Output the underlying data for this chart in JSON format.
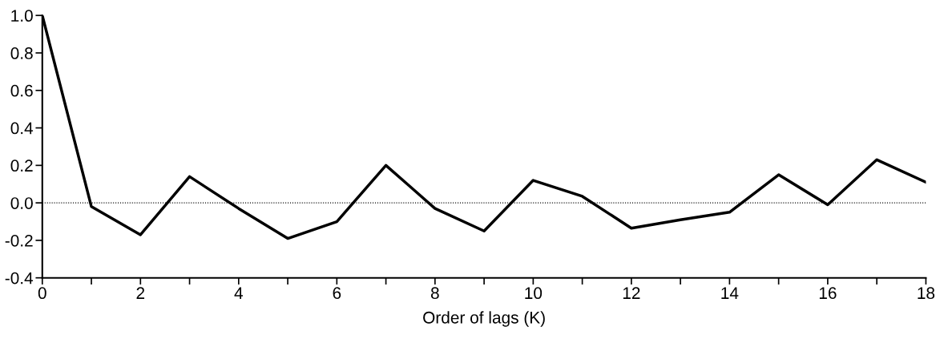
{
  "chart_data": {
    "type": "line",
    "xlabel": "Order of lags (K)",
    "x": [
      0,
      1,
      2,
      3,
      4,
      5,
      6,
      7,
      8,
      9,
      10,
      11,
      12,
      13,
      14,
      15,
      16,
      17,
      18
    ],
    "series": [
      {
        "color": "#000000",
        "values": [
          1.0,
          -0.02,
          -0.17,
          0.14,
          -0.03,
          -0.19,
          -0.1,
          0.2,
          -0.03,
          -0.15,
          0.12,
          0.035,
          -0.135,
          -0.09,
          -0.05,
          0.15,
          -0.01,
          0.23,
          0.11
        ]
      }
    ],
    "xlim": [
      0,
      18
    ],
    "ylim": [
      -0.4,
      1.0
    ],
    "xticks": [
      0,
      {
        "value": 1,
        "label": null
      },
      2,
      {
        "value": 3,
        "label": null
      },
      4,
      {
        "value": 5,
        "label": null
      },
      6,
      {
        "value": 7,
        "label": null
      },
      8,
      {
        "value": 9,
        "label": null
      },
      10,
      {
        "value": 11,
        "label": null
      },
      12,
      {
        "value": 13,
        "label": null
      },
      14,
      {
        "value": 15,
        "label": null
      },
      16,
      {
        "value": 17,
        "label": null
      },
      18
    ],
    "yticks": [
      {
        "value": -0.4,
        "label": "-0.4"
      },
      {
        "value": -0.2,
        "label": "-0.2"
      },
      {
        "value": 0.0,
        "label": "0.0"
      },
      {
        "value": 0.2,
        "label": "0.2"
      },
      {
        "value": 0.4,
        "label": "0.4"
      },
      {
        "value": 0.6,
        "label": "0.6"
      },
      {
        "value": 0.8,
        "label": "0.8"
      },
      {
        "value": 1.0,
        "label": "1.0"
      }
    ],
    "ref_lines": [
      {
        "axis": "y",
        "value": 0,
        "color": "#000000",
        "line_style": "dotted"
      }
    ],
    "grid": false,
    "marker": "none",
    "line_style": "solid"
  }
}
